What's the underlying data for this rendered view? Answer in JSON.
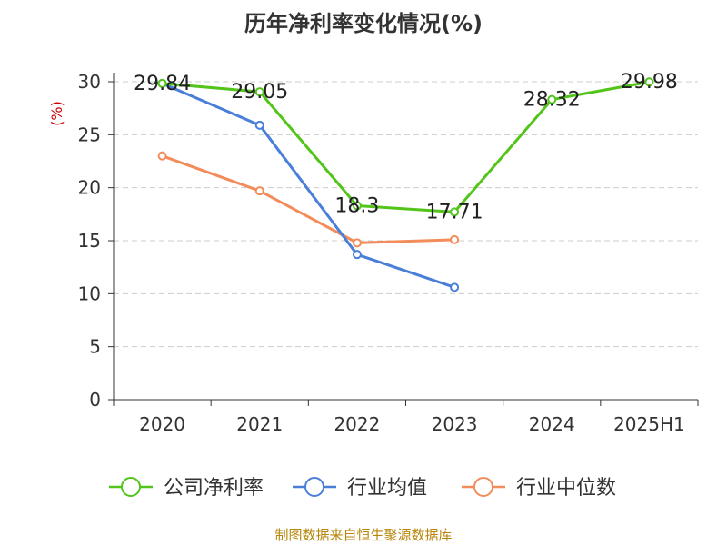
{
  "chart_data": {
    "type": "line",
    "title": "历年净利率变化情况(%)",
    "ylabel": "(%)",
    "categories": [
      "2020",
      "2021",
      "2022",
      "2023",
      "2024",
      "2025H1"
    ],
    "ylim": [
      0,
      30
    ],
    "yticks": [
      0,
      5,
      10,
      15,
      20,
      25,
      30
    ],
    "grid": "horizontal dashed",
    "legend_position": "bottom",
    "series": [
      {
        "name": "公司净利率",
        "color": "#52c41a",
        "values": [
          29.84,
          29.05,
          18.3,
          17.71,
          28.32,
          29.98
        ],
        "labels": [
          "29.84",
          "29.05",
          "18.3",
          "17.71",
          "28.32",
          "29.98"
        ]
      },
      {
        "name": "行业均值",
        "color": "#4a7fd9",
        "values": [
          29.84,
          25.9,
          13.7,
          10.6,
          null,
          null
        ],
        "labels": []
      },
      {
        "name": "行业中位数",
        "color": "#f28c5a",
        "values": [
          23.0,
          19.7,
          14.8,
          15.1,
          null,
          null
        ],
        "labels": []
      }
    ]
  },
  "source": "制图数据来自恒生聚源数据库"
}
